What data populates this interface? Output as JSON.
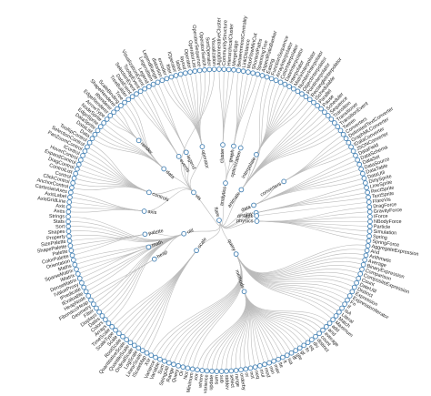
{
  "tree": {
    "name": "flare",
    "children": [
      {
        "name": "analytics",
        "children": [
          {
            "name": "cluster",
            "children": [
              {
                "name": "AgglomerativeCluster"
              },
              {
                "name": "CommunityStructure"
              },
              {
                "name": "HierarchicalCluster"
              },
              {
                "name": "MergeEdge"
              }
            ]
          },
          {
            "name": "graph",
            "children": [
              {
                "name": "BetweennessCentrality"
              },
              {
                "name": "LinkDistance"
              },
              {
                "name": "MaxFlowMinCut"
              },
              {
                "name": "ShortestPaths"
              },
              {
                "name": "SpanningTree"
              }
            ]
          },
          {
            "name": "optimization",
            "children": [
              {
                "name": "AspectRatioBanker"
              }
            ]
          }
        ]
      },
      {
        "name": "animate",
        "children": [
          {
            "name": "Easing"
          },
          {
            "name": "FunctionSequence"
          },
          {
            "name": "interpolate",
            "children": [
              {
                "name": "ArrayInterpolator"
              },
              {
                "name": "ColorInterpolator"
              },
              {
                "name": "DateInterpolator"
              },
              {
                "name": "Interpolator"
              },
              {
                "name": "MatrixInterpolator"
              },
              {
                "name": "NumberInterpolator"
              },
              {
                "name": "ObjectInterpolator"
              },
              {
                "name": "PointInterpolator"
              },
              {
                "name": "RectangleInterpolator"
              }
            ]
          },
          {
            "name": "ISchedulable"
          },
          {
            "name": "Parallel"
          },
          {
            "name": "Pause"
          },
          {
            "name": "Scheduler"
          },
          {
            "name": "Sequence"
          },
          {
            "name": "Transition"
          },
          {
            "name": "Transitioner"
          },
          {
            "name": "TransitionEvent"
          },
          {
            "name": "Tween"
          }
        ]
      },
      {
        "name": "data",
        "children": [
          {
            "name": "converters",
            "children": [
              {
                "name": "Converters"
              },
              {
                "name": "DelimitedTextConverter"
              },
              {
                "name": "GraphMLConverter"
              },
              {
                "name": "IDataConverter"
              },
              {
                "name": "JSONConverter"
              }
            ]
          },
          {
            "name": "DataField"
          },
          {
            "name": "DataSchema"
          },
          {
            "name": "DataSet"
          },
          {
            "name": "DataSource"
          },
          {
            "name": "DataTable"
          },
          {
            "name": "DataUtil"
          }
        ]
      },
      {
        "name": "display",
        "children": [
          {
            "name": "DirtySprite"
          },
          {
            "name": "LineSprite"
          },
          {
            "name": "RectSprite"
          },
          {
            "name": "TextSprite"
          }
        ]
      },
      {
        "name": "flex",
        "children": [
          {
            "name": "FlareVis"
          }
        ]
      },
      {
        "name": "physics",
        "children": [
          {
            "name": "DragForce"
          },
          {
            "name": "GravityForce"
          },
          {
            "name": "IForce"
          },
          {
            "name": "NBodyForce"
          },
          {
            "name": "Particle"
          },
          {
            "name": "Simulation"
          },
          {
            "name": "Spring"
          },
          {
            "name": "SpringForce"
          }
        ]
      },
      {
        "name": "query",
        "children": [
          {
            "name": "AggregateExpression"
          },
          {
            "name": "And"
          },
          {
            "name": "Arithmetic"
          },
          {
            "name": "Average"
          },
          {
            "name": "BinaryExpression"
          },
          {
            "name": "Comparison"
          },
          {
            "name": "CompositeExpression"
          },
          {
            "name": "Count"
          },
          {
            "name": "DateUtil"
          },
          {
            "name": "Distinct"
          },
          {
            "name": "Expression"
          },
          {
            "name": "ExpressionIterator"
          },
          {
            "name": "Fn"
          },
          {
            "name": "If"
          },
          {
            "name": "IsA"
          },
          {
            "name": "Literal"
          },
          {
            "name": "Match"
          },
          {
            "name": "Maximum"
          },
          {
            "name": "methods",
            "children": [
              {
                "name": "add"
              },
              {
                "name": "and"
              },
              {
                "name": "average"
              },
              {
                "name": "count"
              },
              {
                "name": "distinct"
              },
              {
                "name": "div"
              },
              {
                "name": "eq"
              },
              {
                "name": "fn"
              },
              {
                "name": "gt"
              },
              {
                "name": "gte"
              },
              {
                "name": "iff"
              },
              {
                "name": "isa"
              },
              {
                "name": "lt"
              },
              {
                "name": "lte"
              },
              {
                "name": "max"
              },
              {
                "name": "min"
              },
              {
                "name": "mod"
              },
              {
                "name": "mul"
              },
              {
                "name": "neq"
              },
              {
                "name": "not"
              },
              {
                "name": "or"
              },
              {
                "name": "orderby"
              },
              {
                "name": "range"
              },
              {
                "name": "select"
              },
              {
                "name": "stddev"
              },
              {
                "name": "sub"
              },
              {
                "name": "sum"
              },
              {
                "name": "update"
              },
              {
                "name": "variance"
              },
              {
                "name": "where"
              },
              {
                "name": "xor"
              }
            ]
          },
          {
            "name": "Minimum"
          },
          {
            "name": "Not"
          },
          {
            "name": "Or"
          },
          {
            "name": "Query"
          },
          {
            "name": "Range"
          },
          {
            "name": "StringUtil"
          },
          {
            "name": "Sum"
          },
          {
            "name": "Variable"
          },
          {
            "name": "Variance"
          },
          {
            "name": "Xor"
          }
        ]
      },
      {
        "name": "scale",
        "children": [
          {
            "name": "IScaleMap"
          },
          {
            "name": "LinearScale"
          },
          {
            "name": "LogScale"
          },
          {
            "name": "OrdinalScale"
          },
          {
            "name": "QuantileScale"
          },
          {
            "name": "QuantitativeScale"
          },
          {
            "name": "RootScale"
          },
          {
            "name": "Scale"
          },
          {
            "name": "ScaleType"
          },
          {
            "name": "TimeScale"
          }
        ]
      },
      {
        "name": "util",
        "children": [
          {
            "name": "Arrays"
          },
          {
            "name": "Colors"
          },
          {
            "name": "Dates"
          },
          {
            "name": "Displays"
          },
          {
            "name": "Filter"
          },
          {
            "name": "Geometry"
          },
          {
            "name": "heap",
            "children": [
              {
                "name": "FibonacciHeap"
              },
              {
                "name": "HeapNode"
              }
            ]
          },
          {
            "name": "IEvaluable"
          },
          {
            "name": "IPredicate"
          },
          {
            "name": "IValueProxy"
          },
          {
            "name": "math",
            "children": [
              {
                "name": "DenseMatrix"
              },
              {
                "name": "IMatrix"
              },
              {
                "name": "SparseMatrix"
              }
            ]
          },
          {
            "name": "Maths"
          },
          {
            "name": "Orientation"
          },
          {
            "name": "palette",
            "children": [
              {
                "name": "ColorPalette"
              },
              {
                "name": "Palette"
              },
              {
                "name": "ShapePalette"
              },
              {
                "name": "SizePalette"
              }
            ]
          },
          {
            "name": "Property"
          },
          {
            "name": "Shapes"
          },
          {
            "name": "Sort"
          },
          {
            "name": "Stats"
          },
          {
            "name": "Strings"
          }
        ]
      },
      {
        "name": "vis",
        "children": [
          {
            "name": "axis",
            "children": [
              {
                "name": "Axes"
              },
              {
                "name": "Axis"
              },
              {
                "name": "AxisGridLine"
              },
              {
                "name": "AxisLabel"
              },
              {
                "name": "CartesianAxes"
              }
            ]
          },
          {
            "name": "controls",
            "children": [
              {
                "name": "AnchorControl"
              },
              {
                "name": "ClickControl"
              },
              {
                "name": "Control"
              },
              {
                "name": "ControlList"
              },
              {
                "name": "DragControl"
              },
              {
                "name": "ExpandControl"
              },
              {
                "name": "HoverControl"
              },
              {
                "name": "IControl"
              },
              {
                "name": "PanZoomControl"
              },
              {
                "name": "SelectionControl"
              },
              {
                "name": "TooltipControl"
              }
            ]
          },
          {
            "name": "data",
            "children": [
              {
                "name": "Data"
              },
              {
                "name": "DataList"
              },
              {
                "name": "DataSprite"
              },
              {
                "name": "EdgeSprite"
              },
              {
                "name": "NodeSprite"
              },
              {
                "name": "render",
                "children": [
                  {
                    "name": "ArrowType"
                  },
                  {
                    "name": "EdgeRenderer"
                  },
                  {
                    "name": "IRenderer"
                  },
                  {
                    "name": "ShapeRenderer"
                  }
                ]
              },
              {
                "name": "ScaleBinding"
              },
              {
                "name": "Tree"
              },
              {
                "name": "TreeBuilder"
              }
            ]
          },
          {
            "name": "events",
            "children": [
              {
                "name": "DataEvent"
              },
              {
                "name": "SelectionEvent"
              },
              {
                "name": "TooltipEvent"
              },
              {
                "name": "VisualizationEvent"
              }
            ]
          },
          {
            "name": "legend",
            "children": [
              {
                "name": "Legend"
              },
              {
                "name": "LegendItem"
              },
              {
                "name": "LegendRange"
              }
            ]
          },
          {
            "name": "operator",
            "children": [
              {
                "name": "distortion"
              },
              {
                "name": "encoder"
              },
              {
                "name": "filter"
              },
              {
                "name": "IOperator"
              },
              {
                "name": "label"
              },
              {
                "name": "layout"
              },
              {
                "name": "Operator"
              },
              {
                "name": "OperatorList"
              },
              {
                "name": "OperatorSequence"
              },
              {
                "name": "OperatorSwitch"
              },
              {
                "name": "SortOperator"
              }
            ]
          },
          {
            "name": "Visualization"
          }
        ]
      }
    ]
  }
}
